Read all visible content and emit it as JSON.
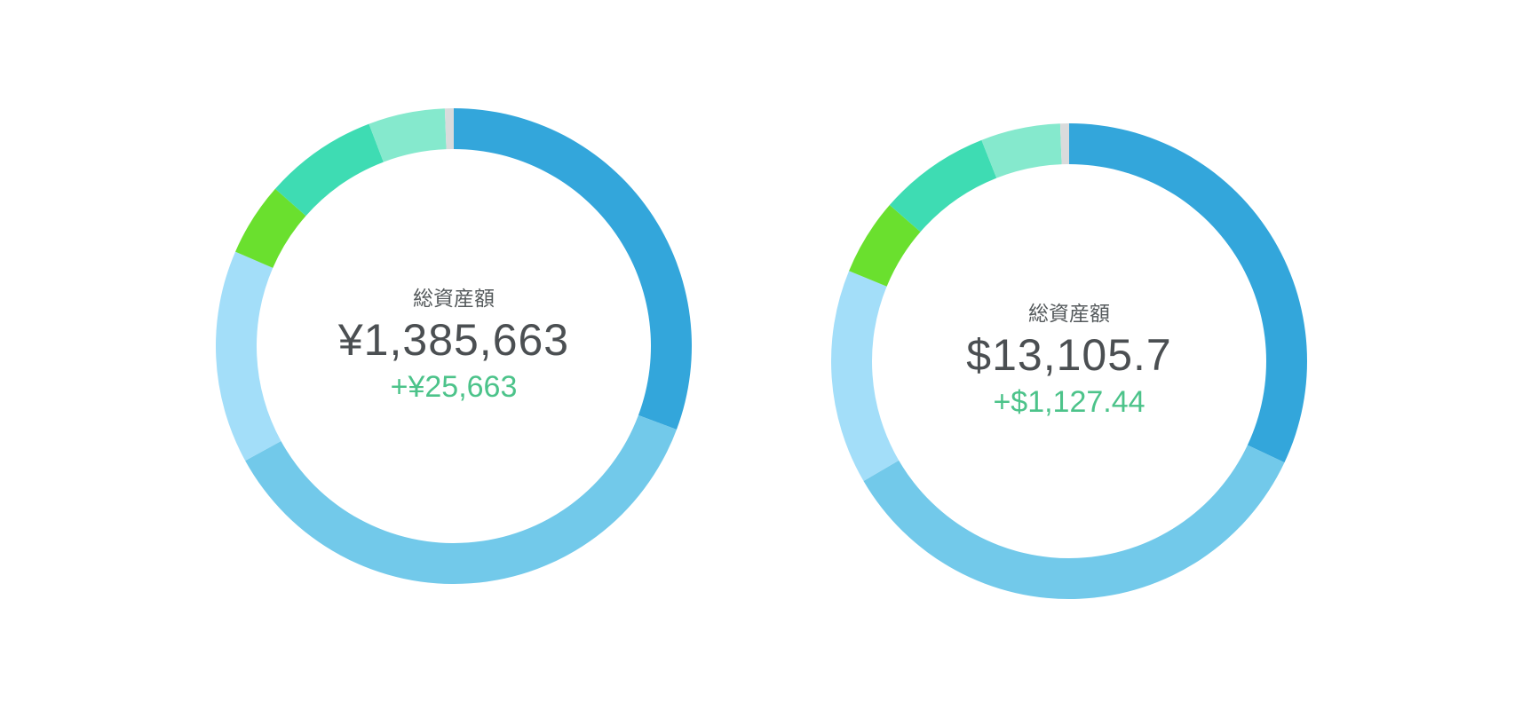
{
  "chart_data": [
    {
      "type": "pie",
      "center": {
        "label": "総資産額",
        "total": "¥1,385,663",
        "change": "+¥25,663"
      },
      "slices": [
        {
          "value": 30.7,
          "color": "#33a6db"
        },
        {
          "value": 36.3,
          "color": "#72c9ea"
        },
        {
          "value": 14.5,
          "color": "#a3def9"
        },
        {
          "value": 5.0,
          "color": "#6ae02e"
        },
        {
          "value": 7.7,
          "color": "#3edcb3"
        },
        {
          "value": 5.2,
          "color": "#85e9cd"
        },
        {
          "value": 0.6,
          "color": "#d9dbdc"
        }
      ]
    },
    {
      "type": "pie",
      "center": {
        "label": "総資産額",
        "total": "$13,105.7",
        "change": "+$1,127.44"
      },
      "slices": [
        {
          "value": 32.0,
          "color": "#33a6db"
        },
        {
          "value": 34.6,
          "color": "#72c9ea"
        },
        {
          "value": 14.6,
          "color": "#a3def9"
        },
        {
          "value": 5.2,
          "color": "#6ae02e"
        },
        {
          "value": 7.6,
          "color": "#3edcb3"
        },
        {
          "value": 5.4,
          "color": "#85e9cd"
        },
        {
          "value": 0.6,
          "color": "#d9dbdc"
        }
      ]
    }
  ]
}
